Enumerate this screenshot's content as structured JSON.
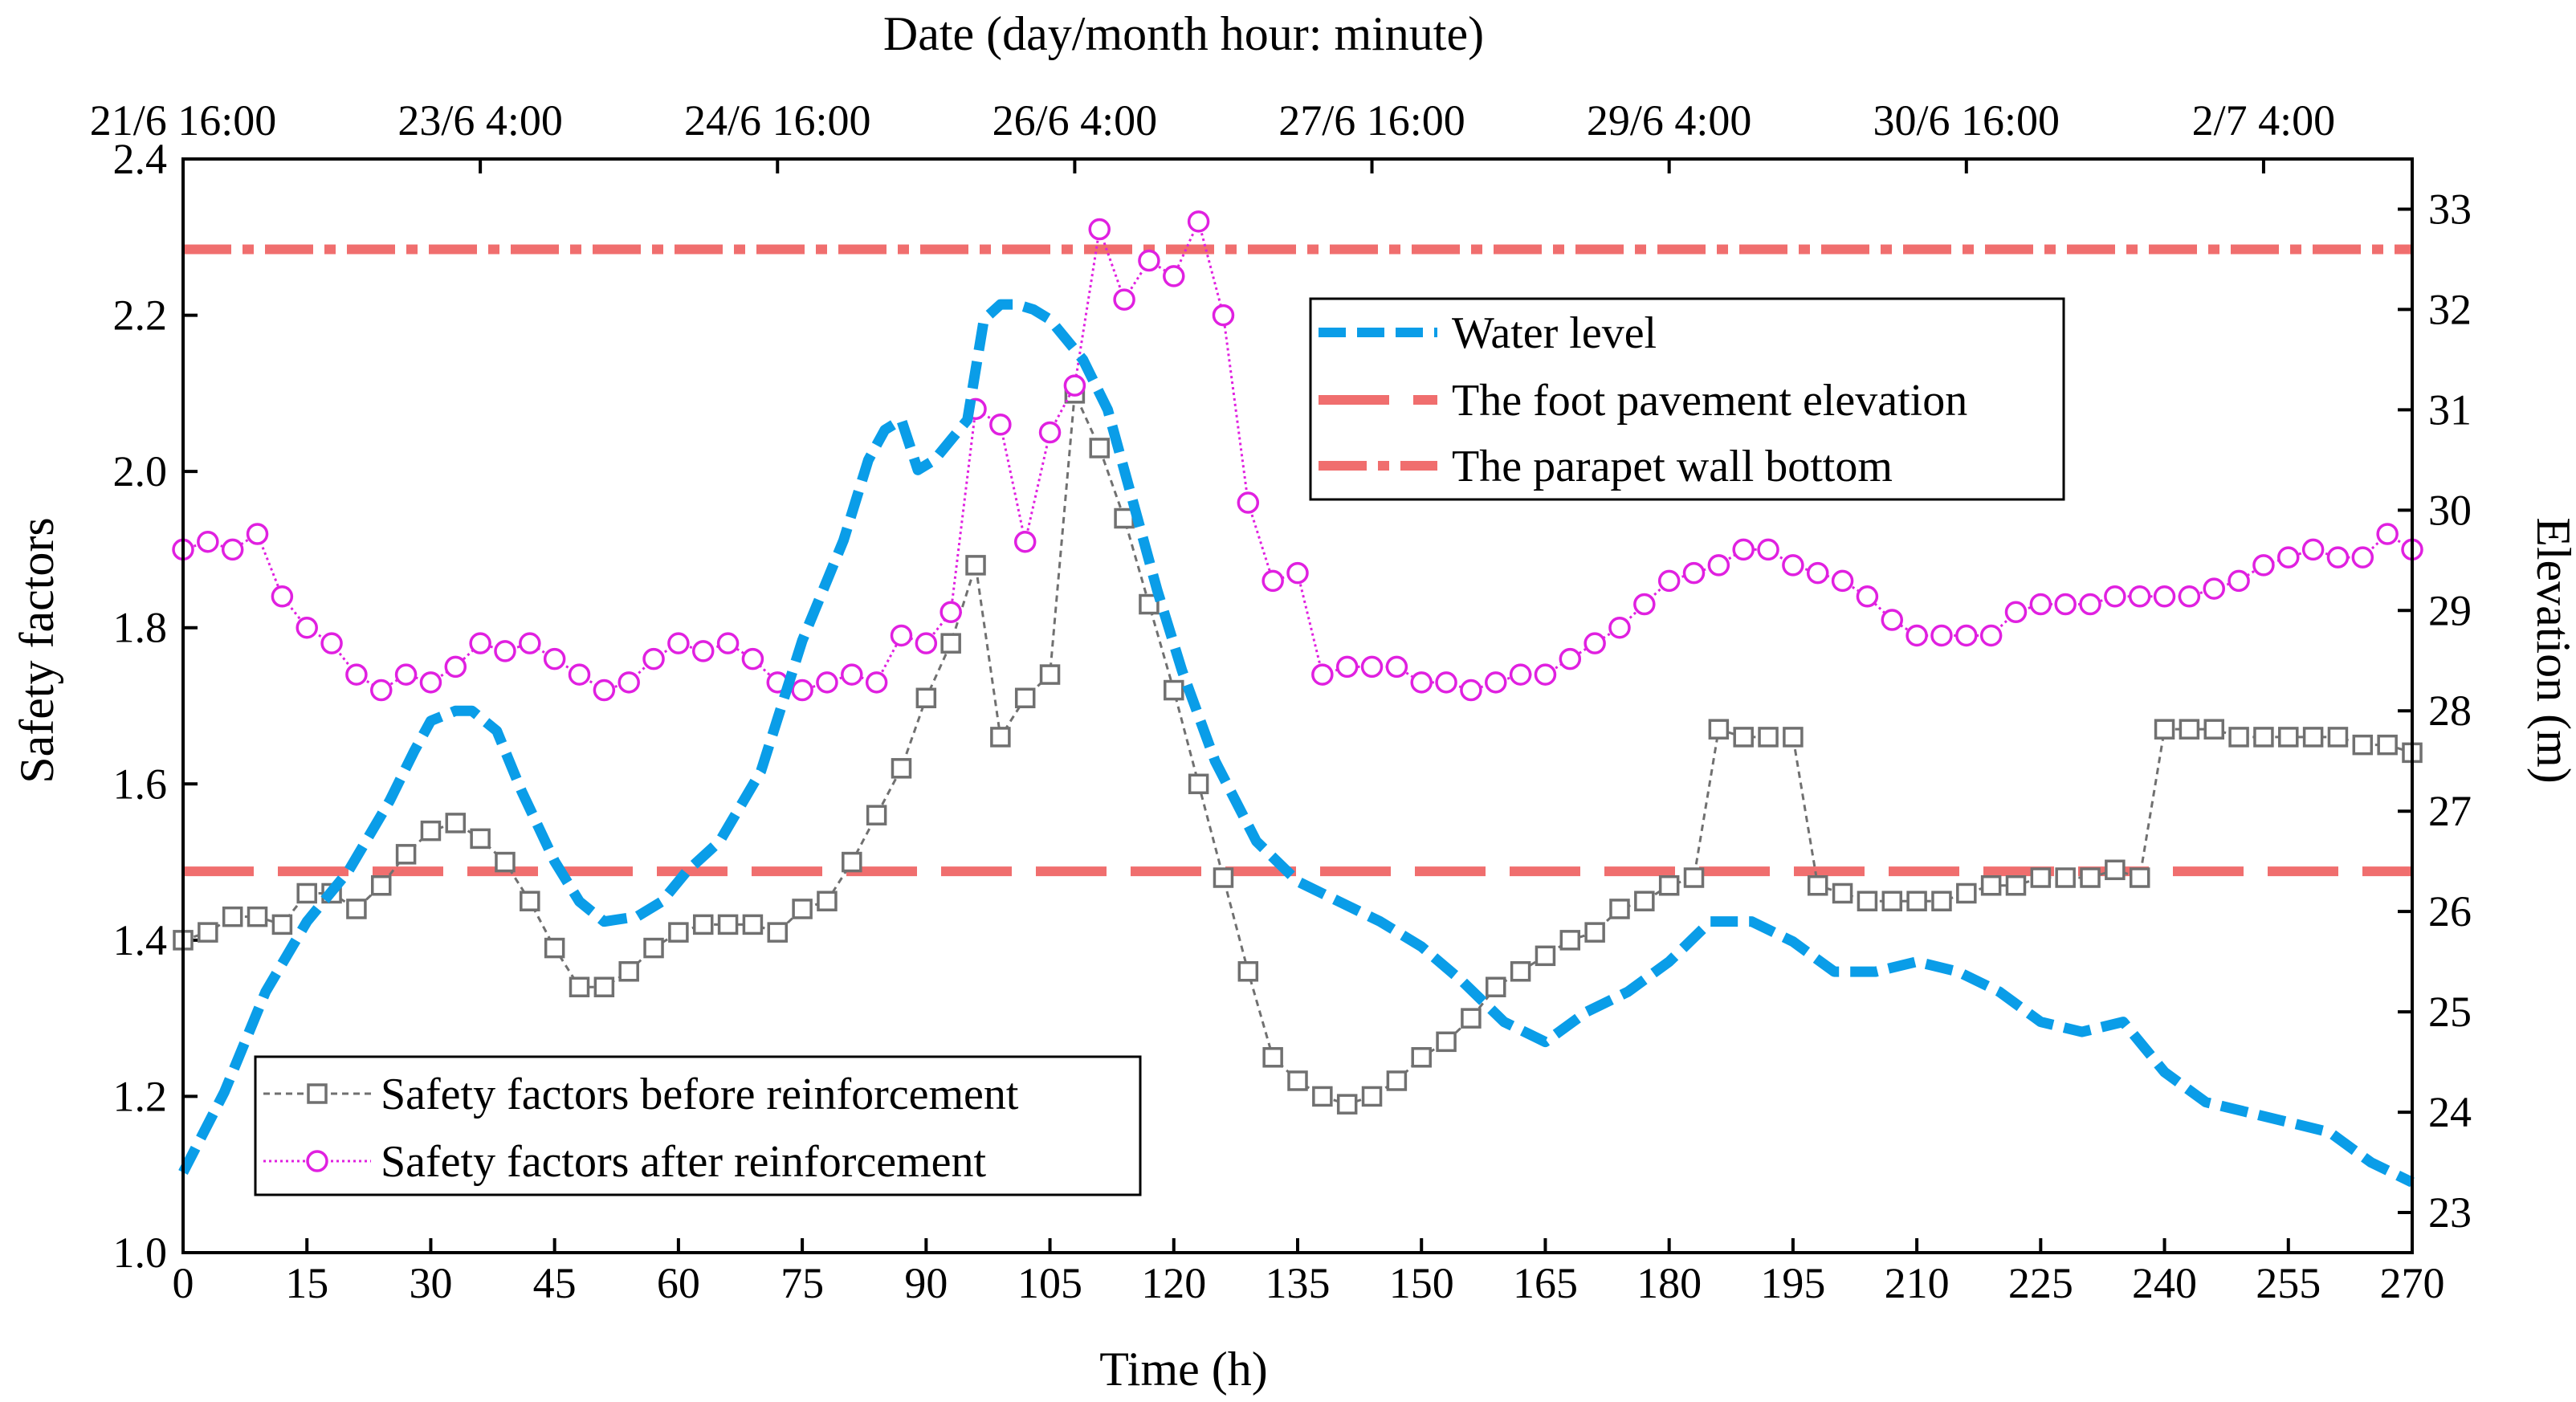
{
  "chart_data": {
    "type": "line",
    "xlabel": "Time (h)",
    "x_top_label": "Date (day/month hour: minute)",
    "ylabel_left": "Safety factors",
    "ylabel_right": "Elevation (m)",
    "xlim": [
      0,
      270
    ],
    "ylim_left": [
      1.0,
      2.4
    ],
    "ylim_right": [
      22.6,
      33.5
    ],
    "x_ticks": [
      "0",
      "15",
      "30",
      "45",
      "60",
      "75",
      "90",
      "105",
      "120",
      "135",
      "150",
      "165",
      "180",
      "195",
      "210",
      "225",
      "240",
      "255",
      "270"
    ],
    "y_left_ticks": [
      "1.0",
      "1.2",
      "1.4",
      "1.6",
      "1.8",
      "2.0",
      "2.2",
      "2.4"
    ],
    "y_right_ticks": [
      "23",
      "24",
      "25",
      "26",
      "27",
      "28",
      "29",
      "30",
      "31",
      "32",
      "33"
    ],
    "top_ticks": [
      "21/6 16:00",
      "23/6 4:00",
      "24/6 16:00",
      "26/6 4:00",
      "27/6 16:00",
      "29/6 4:00",
      "30/6 16:00",
      "2/7 4:00"
    ],
    "legend_upper": [
      "Water level",
      "The foot pavement elevation",
      "The parapet wall bottom"
    ],
    "legend_lower": [
      "Safety factors before reinforcement",
      "Safety factors after reinforcement"
    ],
    "colors": {
      "water": "#0a9de8",
      "reference": "#f06e6e",
      "before": "#707070",
      "after": "#e020e0",
      "axis": "#000000"
    },
    "foot_pavement_elevation": 26.4,
    "parapet_wall_bottom": 32.6,
    "series": [
      {
        "name": "Water level",
        "axis": "right",
        "x": [
          0,
          5,
          10,
          15,
          20,
          25,
          28,
          30,
          33,
          35,
          38,
          41,
          45,
          48,
          51,
          55,
          58,
          61,
          65,
          70,
          75,
          80,
          83,
          85,
          87,
          89,
          91,
          93,
          95,
          97,
          99,
          101,
          103,
          105,
          107,
          109,
          112,
          115,
          118,
          121,
          125,
          130,
          135,
          140,
          145,
          150,
          155,
          160,
          165,
          170,
          175,
          180,
          185,
          190,
          195,
          200,
          205,
          210,
          215,
          220,
          225,
          230,
          235,
          240,
          245,
          250,
          255,
          260,
          265,
          270
        ],
        "values": [
          23.4,
          24.2,
          25.2,
          25.9,
          26.4,
          27.1,
          27.6,
          27.9,
          28.0,
          28.0,
          27.8,
          27.2,
          26.5,
          26.1,
          25.9,
          25.95,
          26.1,
          26.4,
          26.7,
          27.4,
          28.7,
          29.7,
          30.5,
          30.8,
          30.9,
          30.4,
          30.5,
          30.7,
          30.9,
          31.9,
          32.05,
          32.05,
          32.0,
          31.9,
          31.7,
          31.5,
          31.0,
          30.1,
          29.2,
          28.4,
          27.5,
          26.7,
          26.3,
          26.1,
          25.9,
          25.65,
          25.3,
          24.9,
          24.7,
          25.0,
          25.2,
          25.5,
          25.9,
          25.9,
          25.7,
          25.4,
          25.4,
          25.5,
          25.4,
          25.2,
          24.9,
          24.8,
          24.9,
          24.4,
          24.1,
          24.0,
          23.9,
          23.8,
          23.5,
          23.3
        ]
      },
      {
        "name": "Safety factors before reinforcement",
        "axis": "left",
        "x": [
          0,
          3,
          6,
          9,
          12,
          15,
          18,
          21,
          24,
          27,
          30,
          33,
          36,
          39,
          42,
          45,
          48,
          51,
          54,
          57,
          60,
          63,
          66,
          69,
          72,
          75,
          78,
          81,
          84,
          87,
          90,
          93,
          96,
          99,
          102,
          105,
          108,
          111,
          114,
          117,
          120,
          123,
          126,
          129,
          132,
          135,
          138,
          141,
          144,
          147,
          150,
          153,
          156,
          159,
          162,
          165,
          168,
          171,
          174,
          177,
          180,
          183,
          186,
          189,
          192,
          195,
          198,
          201,
          204,
          207,
          210,
          213,
          216,
          219,
          222,
          225,
          228,
          231,
          234,
          237,
          240,
          243,
          246,
          249,
          252,
          255,
          258,
          261,
          264,
          267,
          270
        ],
        "values": [
          1.4,
          1.41,
          1.43,
          1.43,
          1.42,
          1.46,
          1.46,
          1.44,
          1.47,
          1.51,
          1.54,
          1.55,
          1.53,
          1.5,
          1.45,
          1.39,
          1.34,
          1.34,
          1.36,
          1.39,
          1.41,
          1.42,
          1.42,
          1.42,
          1.41,
          1.44,
          1.45,
          1.5,
          1.56,
          1.62,
          1.71,
          1.78,
          1.88,
          1.66,
          1.71,
          1.74,
          2.1,
          2.03,
          1.94,
          1.83,
          1.72,
          1.6,
          1.48,
          1.36,
          1.25,
          1.22,
          1.2,
          1.19,
          1.2,
          1.22,
          1.25,
          1.27,
          1.3,
          1.34,
          1.36,
          1.38,
          1.4,
          1.41,
          1.44,
          1.45,
          1.47,
          1.48,
          1.67,
          1.66,
          1.66,
          1.66,
          1.47,
          1.46,
          1.45,
          1.45,
          1.45,
          1.45,
          1.46,
          1.47,
          1.47,
          1.48,
          1.48,
          1.48,
          1.49,
          1.48,
          1.67,
          1.67,
          1.67,
          1.66,
          1.66,
          1.66,
          1.66,
          1.66,
          1.65,
          1.65,
          1.64
        ]
      },
      {
        "name": "Safety factors after reinforcement",
        "axis": "left",
        "x": [
          0,
          3,
          6,
          9,
          12,
          15,
          18,
          21,
          24,
          27,
          30,
          33,
          36,
          39,
          42,
          45,
          48,
          51,
          54,
          57,
          60,
          63,
          66,
          69,
          72,
          75,
          78,
          81,
          84,
          87,
          90,
          93,
          96,
          99,
          102,
          105,
          108,
          111,
          114,
          117,
          120,
          123,
          126,
          129,
          132,
          135,
          138,
          141,
          144,
          147,
          150,
          153,
          156,
          159,
          162,
          165,
          168,
          171,
          174,
          177,
          180,
          183,
          186,
          189,
          192,
          195,
          198,
          201,
          204,
          207,
          210,
          213,
          216,
          219,
          222,
          225,
          228,
          231,
          234,
          237,
          240,
          243,
          246,
          249,
          252,
          255,
          258,
          261,
          264,
          267,
          270
        ],
        "values": [
          1.9,
          1.91,
          1.9,
          1.92,
          1.84,
          1.8,
          1.78,
          1.74,
          1.72,
          1.74,
          1.73,
          1.75,
          1.78,
          1.77,
          1.78,
          1.76,
          1.74,
          1.72,
          1.73,
          1.76,
          1.78,
          1.77,
          1.78,
          1.76,
          1.73,
          1.72,
          1.73,
          1.74,
          1.73,
          1.79,
          1.78,
          1.82,
          2.08,
          2.06,
          1.91,
          2.05,
          2.11,
          2.31,
          2.22,
          2.27,
          2.25,
          2.32,
          2.2,
          1.96,
          1.86,
          1.87,
          1.74,
          1.75,
          1.75,
          1.75,
          1.73,
          1.73,
          1.72,
          1.73,
          1.74,
          1.74,
          1.76,
          1.78,
          1.8,
          1.83,
          1.86,
          1.87,
          1.88,
          1.9,
          1.9,
          1.88,
          1.87,
          1.86,
          1.84,
          1.81,
          1.79,
          1.79,
          1.79,
          1.79,
          1.82,
          1.83,
          1.83,
          1.83,
          1.84,
          1.84,
          1.84,
          1.84,
          1.85,
          1.86,
          1.88,
          1.89,
          1.9,
          1.89,
          1.89,
          1.92,
          1.9
        ]
      }
    ]
  }
}
